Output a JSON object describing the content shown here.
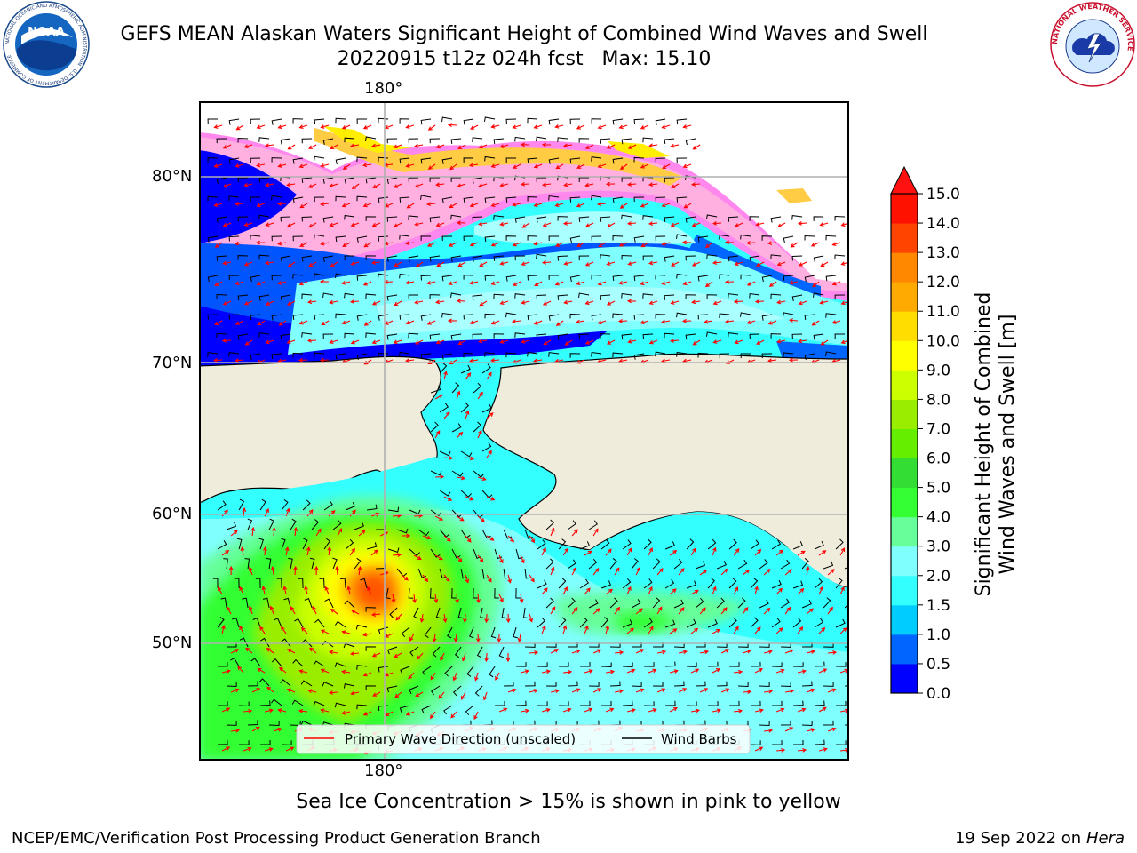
{
  "header": {
    "title_line1": "GEFS MEAN Alaskan Waters Significant Height of Combined Wind Waves and Swell",
    "title_line2": "20220915 t12z 024h fcst   Max: 15.10"
  },
  "logos": {
    "noaa_text": "NOAA",
    "noaa_ring_text": "NATIONAL OCEANIC AND ATMOSPHERIC ADMINISTRATION · U.S. DEPARTMENT OF COMMERCE",
    "nws_ring_text": "NATIONAL WEATHER SERVICE"
  },
  "map": {
    "lon_label_top": "180°",
    "lon_label_bottom": "180°",
    "lat_labels": [
      "80°N",
      "70°N",
      "60°N",
      "50°N"
    ],
    "legend": {
      "wave_direction": "Primary Wave Direction (unscaled)",
      "wind_barbs": "Wind Barbs"
    },
    "colors": {
      "land": "#efecdc",
      "ocean_base": "#33ffff",
      "grid": "#b0b0b0"
    }
  },
  "colorbar": {
    "title_line1": "Significant Height of Combined",
    "title_line2": "Wind Waves and Swell [m]",
    "ticks": [
      "0.0",
      "0.5",
      "1.0",
      "1.5",
      "2.0",
      "3.0",
      "4.0",
      "5.0",
      "6.0",
      "7.0",
      "8.0",
      "9.0",
      "10.0",
      "11.0",
      "12.0",
      "13.0",
      "14.0",
      "15.0"
    ],
    "colors": [
      "#0000ff",
      "#0066ff",
      "#00ccff",
      "#33ffff",
      "#80ffff",
      "#66ff99",
      "#33ff33",
      "#33dd33",
      "#66ee00",
      "#99ee00",
      "#ccff00",
      "#ffff00",
      "#ffdd00",
      "#ffaa00",
      "#ff8800",
      "#ff4400",
      "#ff1100"
    ],
    "extend_color": "#ff1111"
  },
  "footer": {
    "ice_note": "Sea Ice Concentration > 15% is shown in pink to yellow",
    "left": "NCEP/EMC/Verification Post Processing Product Generation Branch",
    "right_date": "19 Sep 2022 on",
    "right_host": "Hera"
  }
}
